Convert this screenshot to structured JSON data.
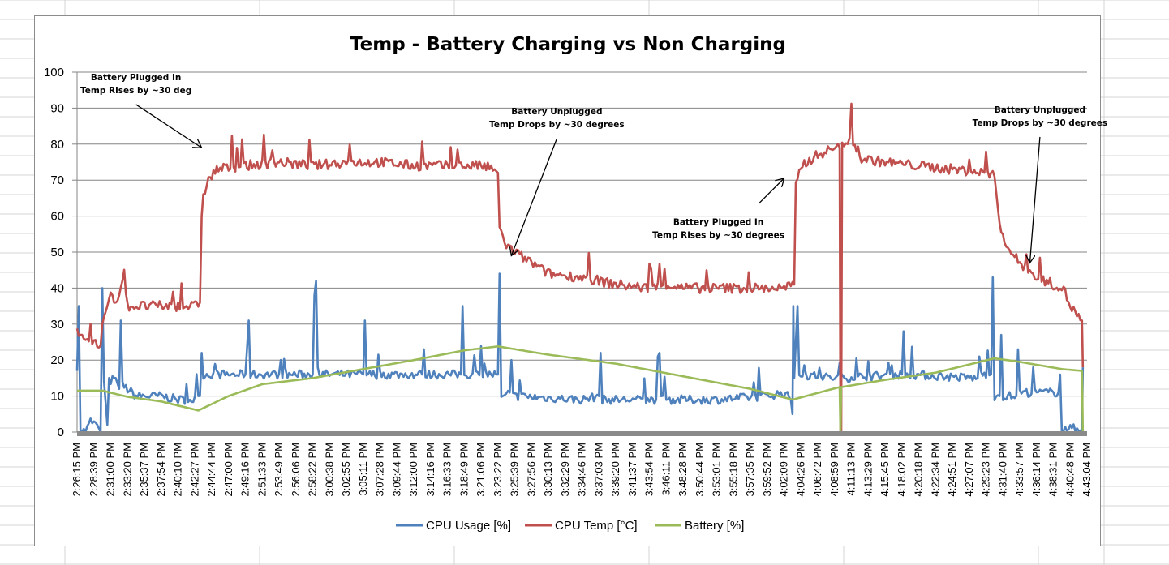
{
  "chart_data": {
    "type": "line",
    "title": "Temp - Battery Charging vs Non Charging",
    "xlabel": "",
    "ylabel": "",
    "ylim": [
      0,
      100
    ],
    "yticks": [
      "0",
      "10",
      "20",
      "30",
      "40",
      "50",
      "60",
      "70",
      "80",
      "90",
      "100"
    ],
    "grid": true,
    "legend_position": "bottom",
    "categories": [
      "2:26:15 PM",
      "2:28:39 PM",
      "2:31:00 PM",
      "2:33:20 PM",
      "2:35:37 PM",
      "2:37:54 PM",
      "2:40:10 PM",
      "2:42:27 PM",
      "2:44:44 PM",
      "2:47:00 PM",
      "2:49:16 PM",
      "2:51:33 PM",
      "2:53:49 PM",
      "2:56:06 PM",
      "2:58:22 PM",
      "3:00:38 PM",
      "3:02:55 PM",
      "3:05:11 PM",
      "3:07:28 PM",
      "3:09:44 PM",
      "3:12:00 PM",
      "3:14:16 PM",
      "3:16:33 PM",
      "3:18:49 PM",
      "3:21:06 PM",
      "3:23:22 PM",
      "3:25:39 PM",
      "3:27:56 PM",
      "3:30:13 PM",
      "3:32:29 PM",
      "3:34:46 PM",
      "3:37:03 PM",
      "3:39:20 PM",
      "3:41:37 PM",
      "3:43:54 PM",
      "3:46:11 PM",
      "3:48:28 PM",
      "3:50:44 PM",
      "3:53:01 PM",
      "3:55:18 PM",
      "3:57:35 PM",
      "3:59:52 PM",
      "4:02:09 PM",
      "4:04:26 PM",
      "4:06:42 PM",
      "4:08:59 PM",
      "4:11:13 PM",
      "4:13:29 PM",
      "4:15:45 PM",
      "4:18:02 PM",
      "4:20:18 PM",
      "4:22:34 PM",
      "4:24:51 PM",
      "4:27:07 PM",
      "4:29:23 PM",
      "4:31:40 PM",
      "4:33:57 PM",
      "4:36:14 PM",
      "4:38:31 PM",
      "4:40:48 PM",
      "4:43:04 PM"
    ],
    "series": [
      {
        "name": "CPU Usage [%]",
        "color": "#4f81bd",
        "noise": 1.2,
        "points": [
          [
            0,
            17
          ],
          [
            0.1,
            35
          ],
          [
            0.2,
            1
          ],
          [
            0.5,
            0
          ],
          [
            0.8,
            3
          ],
          [
            1.2,
            2
          ],
          [
            1.4,
            0
          ],
          [
            1.5,
            40
          ],
          [
            1.6,
            14
          ],
          [
            1.8,
            2
          ],
          [
            1.9,
            14
          ],
          [
            2.3,
            15
          ],
          [
            2.5,
            12
          ],
          [
            2.6,
            31
          ],
          [
            2.7,
            13
          ],
          [
            3.5,
            10
          ],
          [
            5,
            10
          ],
          [
            6,
            9
          ],
          [
            7,
            9
          ],
          [
            7.3,
            10
          ],
          [
            7.4,
            22
          ],
          [
            7.5,
            16
          ],
          [
            10,
            16
          ],
          [
            10.2,
            31
          ],
          [
            10.3,
            16
          ],
          [
            14,
            16
          ],
          [
            14.1,
            38
          ],
          [
            14.2,
            42
          ],
          [
            14.3,
            16
          ],
          [
            17,
            16
          ],
          [
            17.1,
            31
          ],
          [
            17.2,
            16
          ],
          [
            20.5,
            16
          ],
          [
            20.6,
            23
          ],
          [
            20.7,
            16
          ],
          [
            22.8,
            16
          ],
          [
            22.9,
            35
          ],
          [
            23,
            16
          ],
          [
            25,
            16
          ],
          [
            25.1,
            44
          ],
          [
            25.2,
            9
          ],
          [
            25.7,
            11
          ],
          [
            25.8,
            20
          ],
          [
            25.9,
            10
          ],
          [
            30,
            9
          ],
          [
            31,
            10
          ],
          [
            31.1,
            22
          ],
          [
            31.2,
            9
          ],
          [
            34.4,
            9
          ],
          [
            34.5,
            21
          ],
          [
            34.6,
            22
          ],
          [
            34.7,
            9
          ],
          [
            38,
            9
          ],
          [
            41,
            10
          ],
          [
            42,
            11
          ],
          [
            42.4,
            9
          ],
          [
            42.5,
            5
          ],
          [
            42.55,
            35
          ],
          [
            42.6,
            15
          ],
          [
            42.8,
            35
          ],
          [
            42.9,
            16
          ],
          [
            45,
            15
          ],
          [
            49,
            16
          ],
          [
            49.1,
            28
          ],
          [
            49.2,
            16
          ],
          [
            53.5,
            15
          ],
          [
            53.6,
            21
          ],
          [
            53.7,
            16
          ],
          [
            54.3,
            16
          ],
          [
            54.4,
            43
          ],
          [
            54.5,
            10
          ],
          [
            54.8,
            10
          ],
          [
            54.9,
            27
          ],
          [
            55,
            10
          ],
          [
            55.8,
            10
          ],
          [
            55.9,
            23
          ],
          [
            56,
            11
          ],
          [
            58.3,
            11
          ],
          [
            58.4,
            16
          ],
          [
            58.5,
            1
          ],
          [
            59.7,
            1
          ],
          [
            59.75,
            18
          ]
        ]
      },
      {
        "name": "CPU Temp [°C]",
        "color": "#c0504d",
        "noise": 1.4,
        "points": [
          [
            0,
            29
          ],
          [
            0.3,
            26
          ],
          [
            0.8,
            25
          ],
          [
            1.4,
            24
          ],
          [
            1.5,
            30
          ],
          [
            1.6,
            32
          ],
          [
            1.8,
            35
          ],
          [
            2,
            39
          ],
          [
            2.3,
            36
          ],
          [
            2.7,
            42
          ],
          [
            3,
            35
          ],
          [
            5,
            35
          ],
          [
            6,
            35
          ],
          [
            7,
            35
          ],
          [
            7.3,
            36
          ],
          [
            7.4,
            60
          ],
          [
            7.5,
            66
          ],
          [
            7.8,
            70
          ],
          [
            8.3,
            73
          ],
          [
            10,
            74
          ],
          [
            12,
            75
          ],
          [
            14,
            74
          ],
          [
            16,
            75
          ],
          [
            18,
            75
          ],
          [
            20,
            74
          ],
          [
            22,
            74
          ],
          [
            24,
            74
          ],
          [
            24.8,
            73
          ],
          [
            25,
            72
          ],
          [
            25.1,
            56
          ],
          [
            25.5,
            52
          ],
          [
            26,
            50
          ],
          [
            27,
            47
          ],
          [
            28,
            44
          ],
          [
            30,
            43
          ],
          [
            32,
            41
          ],
          [
            34,
            40
          ],
          [
            35,
            41
          ],
          [
            36,
            40
          ],
          [
            38,
            40
          ],
          [
            40,
            40
          ],
          [
            42,
            40
          ],
          [
            42.6,
            41
          ],
          [
            42.7,
            68
          ],
          [
            43,
            74
          ],
          [
            44,
            77
          ],
          [
            45,
            79
          ],
          [
            45.3,
            79
          ],
          [
            45.35,
            0
          ],
          [
            45.4,
            0
          ],
          [
            45.45,
            80
          ],
          [
            46,
            82
          ],
          [
            46.5,
            76
          ],
          [
            48,
            75
          ],
          [
            50,
            74
          ],
          [
            52,
            73
          ],
          [
            54,
            72
          ],
          [
            54.5,
            71
          ],
          [
            54.8,
            58
          ],
          [
            55.3,
            51
          ],
          [
            56,
            47
          ],
          [
            57,
            43
          ],
          [
            58,
            41
          ],
          [
            58.6,
            40
          ],
          [
            58.9,
            36
          ],
          [
            59.3,
            33
          ],
          [
            59.7,
            31
          ],
          [
            59.75,
            18
          ]
        ]
      },
      {
        "name": "Battery [%]",
        "color": "#9bbb59",
        "noise": 0,
        "points": [
          [
            0,
            11.5
          ],
          [
            1.5,
            11.5
          ],
          [
            3,
            9.8
          ],
          [
            5,
            8.5
          ],
          [
            7.2,
            6
          ],
          [
            9,
            10
          ],
          [
            11,
            13.3
          ],
          [
            14,
            15
          ],
          [
            17,
            17.5
          ],
          [
            20,
            20
          ],
          [
            23,
            22.7
          ],
          [
            25,
            23.8
          ],
          [
            28,
            21.5
          ],
          [
            32,
            19
          ],
          [
            36,
            15.5
          ],
          [
            40,
            12
          ],
          [
            42.5,
            9
          ],
          [
            45.3,
            12.5
          ],
          [
            45.35,
            0
          ],
          [
            45.4,
            12.5
          ],
          [
            48,
            14.5
          ],
          [
            51,
            16.5
          ],
          [
            54.5,
            20.5
          ],
          [
            56,
            19.5
          ],
          [
            58.5,
            17.5
          ],
          [
            59.7,
            17
          ],
          [
            59.75,
            0
          ]
        ]
      }
    ],
    "annotations": [
      {
        "lines": [
          "Battery Plugged In",
          "Temp Rises by ~30 deg"
        ],
        "arrow_from": [
          3.5,
          91
        ],
        "arrow_to": [
          7.4,
          79
        ]
      },
      {
        "lines": [
          "Battery Unplugged",
          "Temp Drops by ~30 degrees"
        ],
        "arrow_from": [
          28.5,
          81.5
        ],
        "arrow_to": [
          25.8,
          49
        ]
      },
      {
        "lines": [
          "Battery Plugged In",
          "Temp Rises by ~30 degrees"
        ],
        "arrow_from": [
          40.5,
          63.5
        ],
        "arrow_to": [
          42,
          70.5
        ]
      },
      {
        "lines": [
          "Battery Unplugged",
          "Temp Drops by ~30 degrees"
        ],
        "arrow_from": [
          57.2,
          82
        ],
        "arrow_to": [
          56.6,
          47
        ]
      }
    ]
  }
}
